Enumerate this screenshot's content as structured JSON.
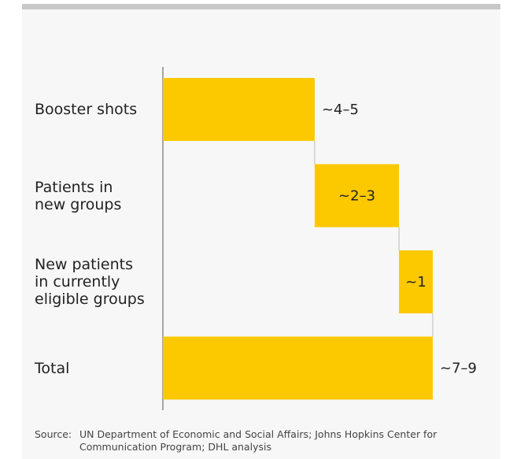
{
  "chart_data": {
    "type": "waterfall",
    "categories": [
      "Booster shots",
      "Patients in\nnew groups",
      "New patients\nin currently\neligible groups",
      "Total"
    ],
    "values": [
      4.5,
      2.5,
      1,
      8
    ],
    "value_labels": [
      "~4–5",
      "~2–3",
      "~1",
      "~7–9"
    ],
    "measure": [
      "relative",
      "relative",
      "relative",
      "total"
    ],
    "label_position": [
      "outside",
      "inside",
      "inside",
      "outside"
    ],
    "color": "#fcc800",
    "xlim": [
      0,
      8
    ],
    "source_label": "Source:",
    "source": "UN Department of Economic and Social Affairs; Johns Hopkins Center for Communication Program; DHL analysis"
  }
}
